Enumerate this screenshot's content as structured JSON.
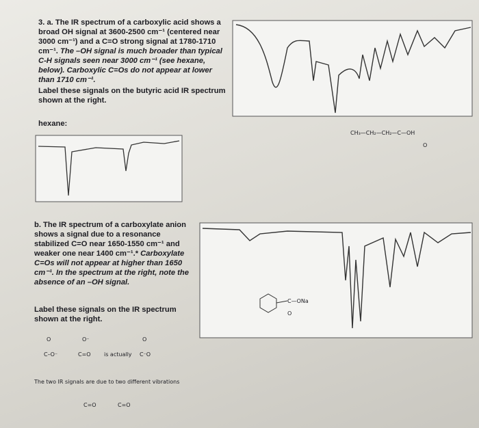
{
  "part_a": {
    "text": "3. a. The IR spectrum of a carboxylic acid shows a broad OH signal at 3600-2500 cm⁻¹ (centered near 3000 cm⁻¹) and a C=O strong signal at 1780-1710 cm⁻¹.",
    "note": "The –OH signal is much broader than typical C-H signals seen near 3000 cm⁻¹ (see hexane, below). Carboxylic C=Os do not appear at lower than 1710 cm⁻¹.",
    "instruction": "Label these signals on the butyric acid IR spectrum shown at the right.",
    "hexane_label": "hexane:"
  },
  "butyric_acid": {
    "formula": "CH₃—CH₂—CH₂—C—OH",
    "oxygen": "O"
  },
  "part_b": {
    "text": "b. The IR spectrum of a carboxylate anion shows a signal due to a resonance stabilized C=O near 1650-1550 cm⁻¹ and weaker one near 1400 cm⁻¹.*",
    "note": "Carboxylate C=Os will not appear at higher than 1650 cm⁻¹. In the spectrum at the right, note the absence of an –OH signal.",
    "instruction": "Label these signals on the IR spectrum shown at the right."
  },
  "benzoate": {
    "group": "C—ONa",
    "oxygen": "O"
  },
  "resonance": {
    "left_o": "O",
    "left": "C–O⁻",
    "mid_o": "O⁻",
    "mid": "C=O",
    "is_actually": "is actually",
    "right_o": "O",
    "right": "C⁻O",
    "caption": "The two IR signals are due to two different vibrations",
    "vib1": "C=O",
    "vib2": "C=O"
  }
}
